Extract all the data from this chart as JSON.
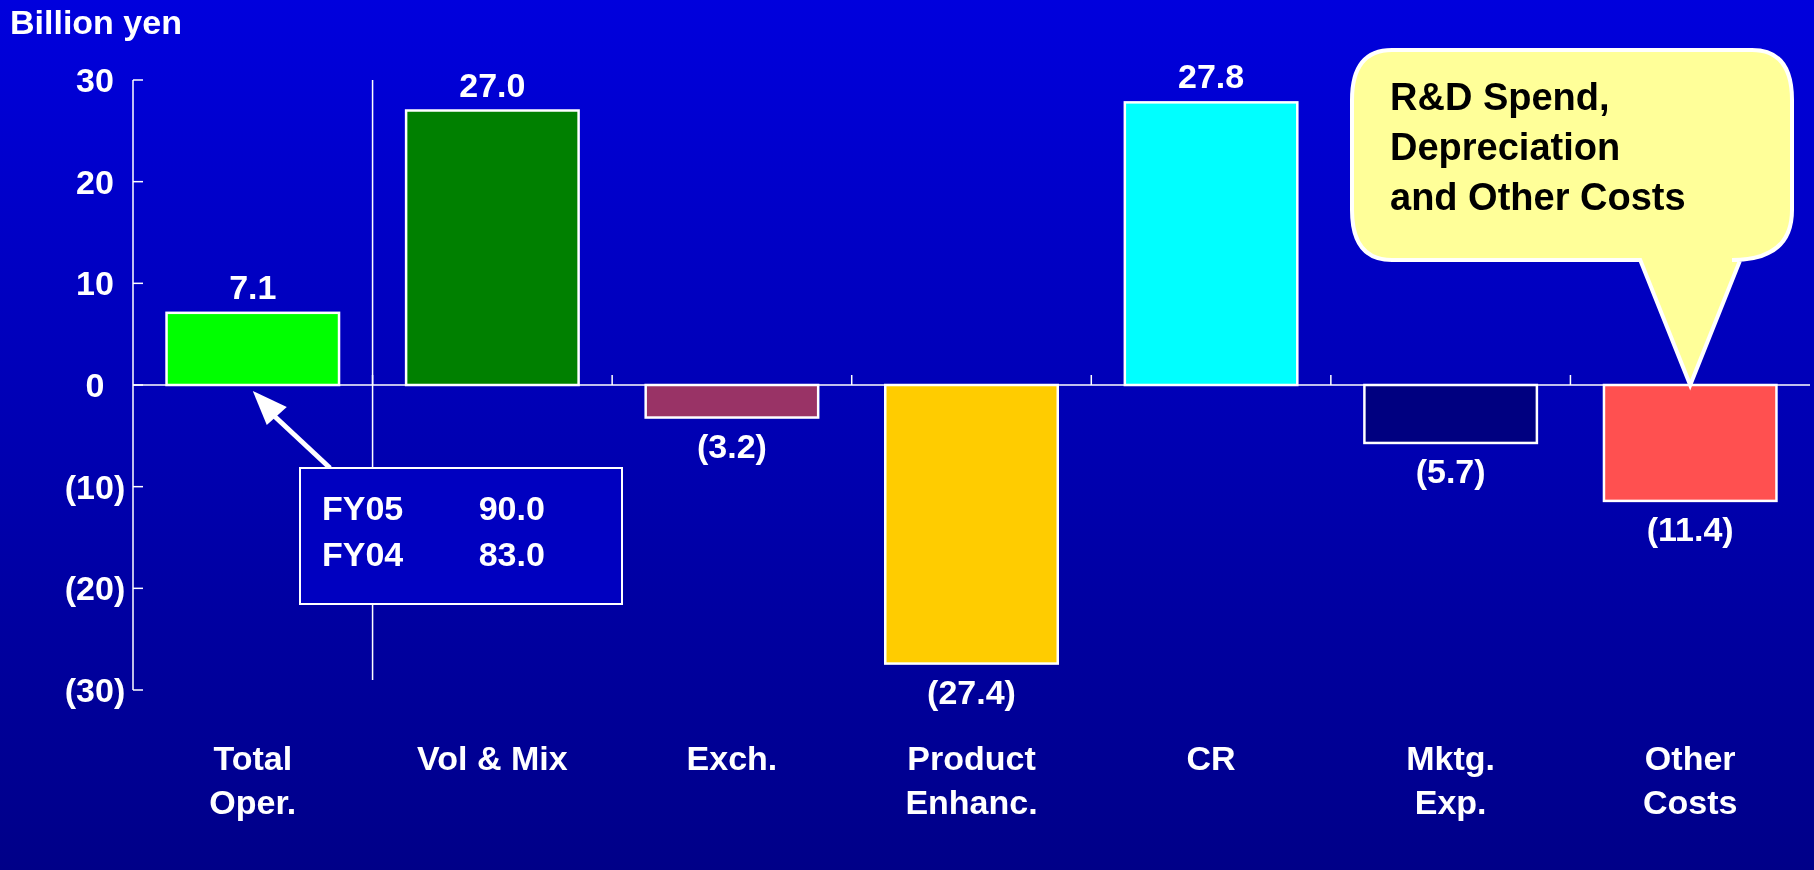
{
  "chart_data": {
    "type": "bar",
    "ylabel": "Billion yen",
    "categories": [
      "Total\nOper.",
      "Vol & Mix",
      "Exch.",
      "Product\nEnhanc.",
      "CR",
      "Mktg.\nExp.",
      "Other\nCosts"
    ],
    "values": [
      7.1,
      27.0,
      -3.2,
      -27.4,
      27.8,
      -5.7,
      -11.4
    ],
    "colors": [
      "#00ff00",
      "#008000",
      "#993366",
      "#ffcc00",
      "#00ffff",
      "#000080",
      "#ff5050"
    ],
    "value_labels": [
      "7.1",
      "27.0",
      "(3.2)",
      "(27.4)",
      "27.8",
      "(5.7)",
      "(11.4)"
    ],
    "ylim": [
      -30,
      30
    ],
    "yticks": [
      {
        "value": -30,
        "label": "(30)"
      },
      {
        "value": -20,
        "label": "(20)"
      },
      {
        "value": -10,
        "label": "(10)"
      },
      0,
      10,
      20,
      30
    ],
    "annotations": [
      "FY05 90.0\nFY04 83.0",
      "R&D Spend,\nDepreciation\nand Other Costs"
    ]
  }
}
